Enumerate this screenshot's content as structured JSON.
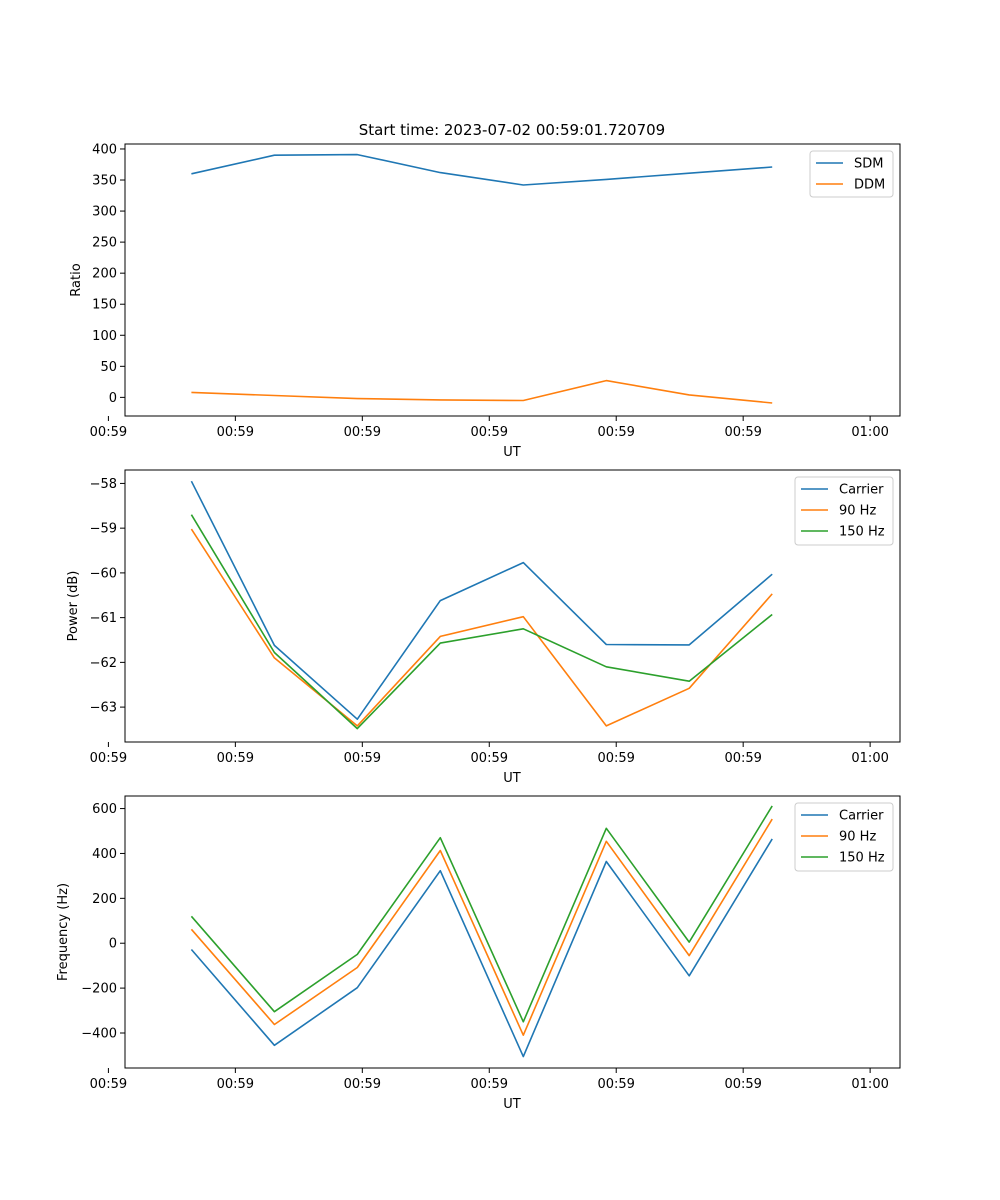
{
  "figure_title": "Start time: 2023-07-02 00:59:01.720709",
  "chart_data": [
    {
      "type": "line",
      "title": "Start time: 2023-07-02 00:59:01.720709",
      "xlabel": "UT",
      "ylabel": "Ratio",
      "x": [
        1,
        2,
        3,
        4,
        5,
        6,
        7,
        8
      ],
      "xlim": [
        0.2,
        9.54
      ],
      "x_ticks": [
        0,
        1.53,
        3.06,
        4.59,
        6.12,
        7.65,
        9.18
      ],
      "x_tick_labels": [
        "00:59",
        "00:59",
        "00:59",
        "00:59",
        "00:59",
        "00:59",
        "01:00"
      ],
      "ylim": [
        -30,
        408
      ],
      "y_ticks": [
        0,
        50,
        100,
        150,
        200,
        250,
        300,
        350,
        400
      ],
      "y_tick_labels": [
        "0",
        "50",
        "100",
        "150",
        "200",
        "250",
        "300",
        "350",
        "400"
      ],
      "legend": "upper-right",
      "series": [
        {
          "name": "SDM",
          "color": "#1f77b4",
          "values": [
            360,
            390,
            391,
            362,
            342,
            351,
            361,
            371
          ]
        },
        {
          "name": "DDM",
          "color": "#ff7f0e",
          "values": [
            8,
            3,
            -2,
            -4,
            -5,
            27,
            4,
            -9
          ]
        }
      ]
    },
    {
      "type": "line",
      "title": "",
      "xlabel": "UT",
      "ylabel": "Power (dB)",
      "x": [
        1,
        2,
        3,
        4,
        5,
        6,
        7,
        8
      ],
      "xlim": [
        0.2,
        9.54
      ],
      "x_ticks": [
        0,
        1.53,
        3.06,
        4.59,
        6.12,
        7.65,
        9.18
      ],
      "x_tick_labels": [
        "00:59",
        "00:59",
        "00:59",
        "00:59",
        "00:59",
        "00:59",
        "01:00"
      ],
      "ylim": [
        -63.78,
        -57.7
      ],
      "y_ticks": [
        -63,
        -62,
        -61,
        -60,
        -59,
        -58
      ],
      "y_tick_labels": [
        "−63",
        "−62",
        "−61",
        "−60",
        "−59",
        "−58"
      ],
      "legend": "upper-right",
      "series": [
        {
          "name": "Carrier",
          "color": "#1f77b4",
          "values": [
            -57.95,
            -61.62,
            -63.27,
            -60.62,
            -59.77,
            -61.6,
            -61.61,
            -60.03
          ]
        },
        {
          "name": "90 Hz",
          "color": "#ff7f0e",
          "values": [
            -59.02,
            -61.9,
            -63.42,
            -61.42,
            -60.98,
            -63.42,
            -62.58,
            -60.47
          ]
        },
        {
          "name": "150 Hz",
          "color": "#2ca02c",
          "values": [
            -58.7,
            -61.78,
            -63.48,
            -61.57,
            -61.25,
            -62.1,
            -62.42,
            -60.93
          ]
        }
      ]
    },
    {
      "type": "line",
      "title": "",
      "xlabel": "UT",
      "ylabel": "Frequency (Hz)",
      "x": [
        1,
        2,
        3,
        4,
        5,
        6,
        7,
        8
      ],
      "xlim": [
        0.2,
        9.54
      ],
      "x_ticks": [
        0,
        1.53,
        3.06,
        4.59,
        6.12,
        7.65,
        9.18
      ],
      "x_tick_labels": [
        "00:59",
        "00:59",
        "00:59",
        "00:59",
        "00:59",
        "00:59",
        "01:00"
      ],
      "ylim": [
        -556,
        656
      ],
      "y_ticks": [
        -400,
        -200,
        0,
        200,
        400,
        600
      ],
      "y_tick_labels": [
        "−400",
        "−200",
        "0",
        "200",
        "400",
        "600"
      ],
      "legend": "upper-right",
      "series": [
        {
          "name": "Carrier",
          "color": "#1f77b4",
          "values": [
            -28,
            -455,
            -198,
            323,
            -505,
            364,
            -145,
            465
          ]
        },
        {
          "name": "90 Hz",
          "color": "#ff7f0e",
          "values": [
            62,
            -362,
            -108,
            413,
            -410,
            454,
            -55,
            553
          ]
        },
        {
          "name": "150 Hz",
          "color": "#2ca02c",
          "values": [
            120,
            -305,
            -50,
            470,
            -350,
            512,
            5,
            612
          ]
        }
      ]
    }
  ]
}
